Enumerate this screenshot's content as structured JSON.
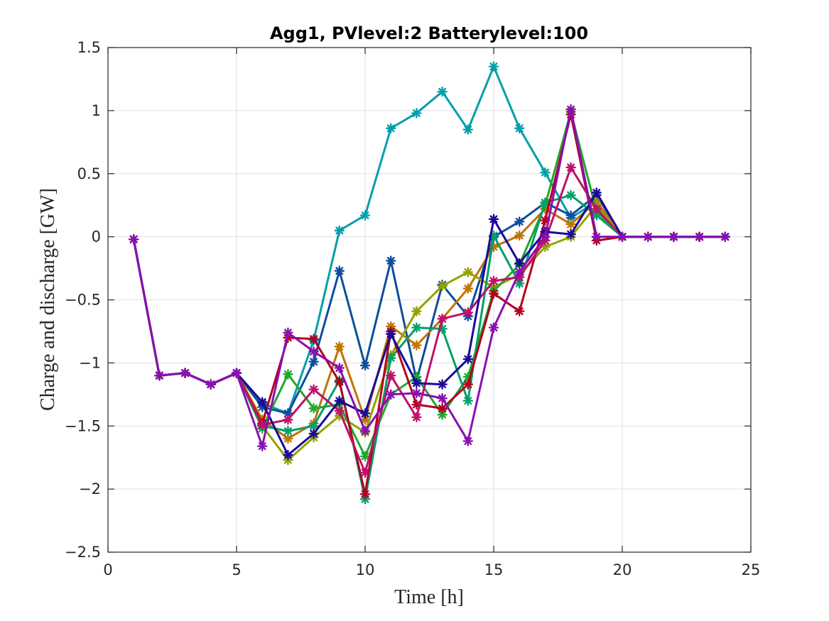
{
  "chart_data": {
    "type": "line",
    "title": "Agg1, PVlevel:2 Batterylevel:100",
    "xlabel": "Time [h]",
    "ylabel": "Charge and discharge [GW]",
    "xlim": [
      0,
      25
    ],
    "ylim": [
      -2.5,
      1.5
    ],
    "xticks": [
      0,
      5,
      10,
      15,
      20,
      25
    ],
    "yticks": [
      -2.5,
      -2,
      -1.5,
      -1,
      -0.5,
      0,
      0.5,
      1,
      1.5
    ],
    "xtick_labels": [
      "0",
      "5",
      "10",
      "15",
      "20",
      "25"
    ],
    "ytick_labels": [
      "−2.5",
      "−2",
      "−1.5",
      "−1",
      "−0.5",
      "0",
      "0.5",
      "1",
      "1.5"
    ],
    "grid": true,
    "legend": "none",
    "marker": "asterisk",
    "x": [
      1,
      2,
      3,
      4,
      5,
      6,
      7,
      8,
      9,
      10,
      11,
      12,
      13,
      14,
      15,
      16,
      17,
      18,
      19,
      20,
      21,
      22,
      23,
      24
    ],
    "series": [
      {
        "color": "#009faa",
        "values": [
          -0.02,
          -1.1,
          -1.08,
          -1.17,
          -1.08,
          -1.32,
          -1.4,
          -0.82,
          0.05,
          0.17,
          0.86,
          0.98,
          1.15,
          0.85,
          1.35,
          0.86,
          0.51,
          0.15,
          0.28,
          0.0,
          0.0,
          0.0,
          0.0,
          0.0
        ]
      },
      {
        "color": "#0d4d9c",
        "values": [
          -0.02,
          -1.1,
          -1.08,
          -1.17,
          -1.08,
          -1.35,
          -1.4,
          -0.99,
          -0.27,
          -1.02,
          -0.19,
          -1.14,
          -0.38,
          -0.63,
          0.0,
          0.12,
          0.27,
          0.17,
          0.33,
          0.0,
          0.0,
          0.0,
          0.0,
          0.0
        ]
      },
      {
        "color": "#c07400",
        "values": [
          -0.02,
          -1.1,
          -1.08,
          -1.17,
          -1.08,
          -1.45,
          -1.6,
          -1.48,
          -0.87,
          -1.45,
          -0.71,
          -0.86,
          -0.65,
          -0.41,
          -0.08,
          0.01,
          0.22,
          0.1,
          0.28,
          0.0,
          0.0,
          0.0,
          0.0,
          0.0
        ]
      },
      {
        "color": "#93a200",
        "values": [
          -0.02,
          -1.1,
          -1.08,
          -1.17,
          -1.08,
          -1.5,
          -1.77,
          -1.59,
          -1.42,
          -1.55,
          -0.94,
          -0.59,
          -0.39,
          -0.28,
          -0.4,
          -0.3,
          -0.08,
          0.0,
          0.25,
          0.0,
          0.0,
          0.0,
          0.0,
          0.0
        ]
      },
      {
        "color": "#1fa82b",
        "values": [
          -0.02,
          -1.1,
          -1.08,
          -1.17,
          -1.08,
          -1.52,
          -1.09,
          -1.36,
          -1.33,
          -1.74,
          -1.25,
          -1.11,
          -1.41,
          -1.11,
          -0.43,
          -0.22,
          0.25,
          0.99,
          0.2,
          0.0,
          0.0,
          0.0,
          0.0,
          0.0
        ]
      },
      {
        "color": "#00a06a",
        "values": [
          -0.02,
          -1.1,
          -1.08,
          -1.17,
          -1.08,
          -1.5,
          -1.54,
          -1.5,
          -1.14,
          -2.08,
          -0.96,
          -0.72,
          -0.73,
          -1.3,
          0.01,
          -0.37,
          0.27,
          0.33,
          0.17,
          0.0,
          0.0,
          0.0,
          0.0,
          0.0
        ]
      },
      {
        "color": "#b2001e",
        "values": [
          -0.02,
          -1.1,
          -1.08,
          -1.17,
          -1.08,
          -1.48,
          -0.8,
          -0.81,
          -1.15,
          -2.04,
          -0.75,
          -1.33,
          -1.36,
          -1.17,
          -0.45,
          -0.59,
          0.13,
          0.97,
          -0.03,
          0.0,
          0.0,
          0.0,
          0.0,
          0.0
        ]
      },
      {
        "color": "#c0106a",
        "values": [
          -0.02,
          -1.1,
          -1.08,
          -1.17,
          -1.08,
          -1.49,
          -1.45,
          -1.21,
          -1.38,
          -1.87,
          -1.1,
          -1.43,
          -0.65,
          -0.6,
          -0.35,
          -0.32,
          -0.03,
          0.55,
          0.22,
          0.0,
          0.0,
          0.0,
          0.0,
          0.0
        ]
      },
      {
        "color": "#1a0a9a",
        "values": [
          -0.02,
          -1.1,
          -1.08,
          -1.17,
          -1.08,
          -1.31,
          -1.73,
          -1.56,
          -1.3,
          -1.4,
          -0.77,
          -1.16,
          -1.17,
          -0.97,
          0.14,
          -0.21,
          0.04,
          0.02,
          0.35,
          0.0,
          0.0,
          0.0,
          0.0,
          0.0
        ]
      },
      {
        "color": "#8a10b0",
        "values": [
          -0.02,
          -1.1,
          -1.08,
          -1.17,
          -1.08,
          -1.66,
          -0.76,
          -0.91,
          -1.04,
          -1.54,
          -1.25,
          -1.24,
          -1.28,
          -1.62,
          -0.72,
          -0.28,
          -0.0,
          1.01,
          0.0,
          0.0,
          0.0,
          0.0,
          0.0,
          0.0
        ]
      }
    ]
  }
}
